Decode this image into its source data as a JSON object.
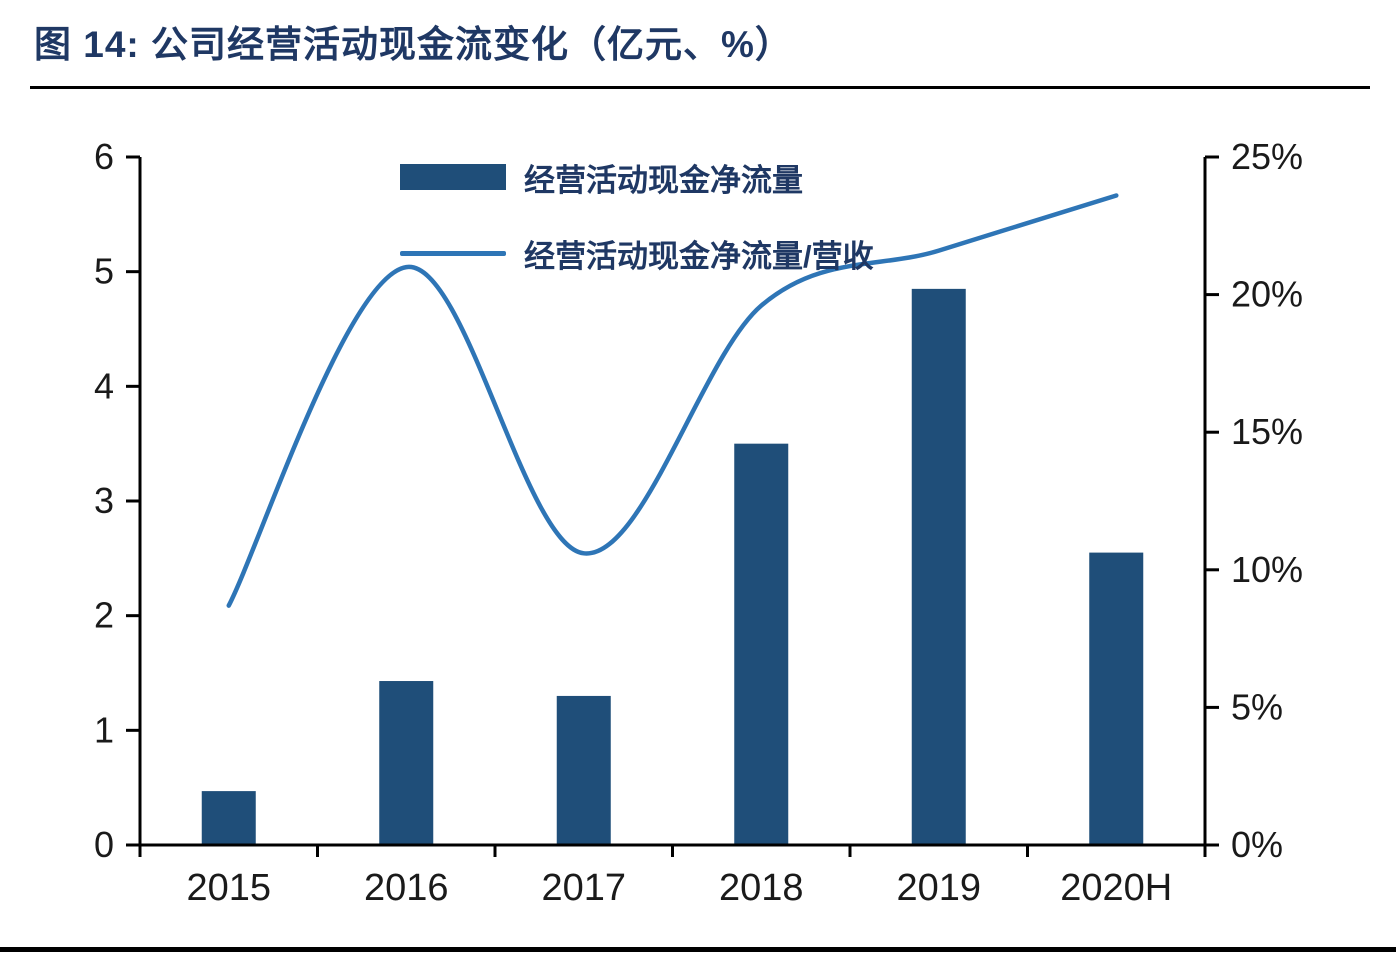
{
  "title": "图 14:  公司经营活动现金流变化（亿元、%）",
  "chart_data": {
    "type": "bar",
    "subtype": "bar-with-line-dual-axis",
    "categories": [
      "2015",
      "2016",
      "2017",
      "2018",
      "2019",
      "2020H"
    ],
    "series": [
      {
        "name": "经营活动现金净流量",
        "type": "bar",
        "axis": "left",
        "color": "#1F4E79",
        "values": [
          0.47,
          1.43,
          1.3,
          3.5,
          4.85,
          2.55
        ]
      },
      {
        "name": "经营活动现金净流量/营收",
        "type": "line",
        "axis": "right",
        "color": "#2E75B6",
        "values": [
          8.7,
          21.0,
          10.6,
          19.6,
          21.6,
          23.6
        ]
      }
    ],
    "left_axis": {
      "min": 0,
      "max": 6,
      "step": 1,
      "tick_labels": [
        "0",
        "1",
        "2",
        "3",
        "4",
        "5",
        "6"
      ]
    },
    "right_axis": {
      "min": 0,
      "max": 25,
      "step": 5,
      "tick_labels": [
        "0%",
        "5%",
        "10%",
        "15%",
        "20%",
        "25%"
      ]
    },
    "grid": false,
    "legend_position": "top-center-inside",
    "axis_color": "#000000",
    "tick_label_color": "#1a1a1a"
  }
}
